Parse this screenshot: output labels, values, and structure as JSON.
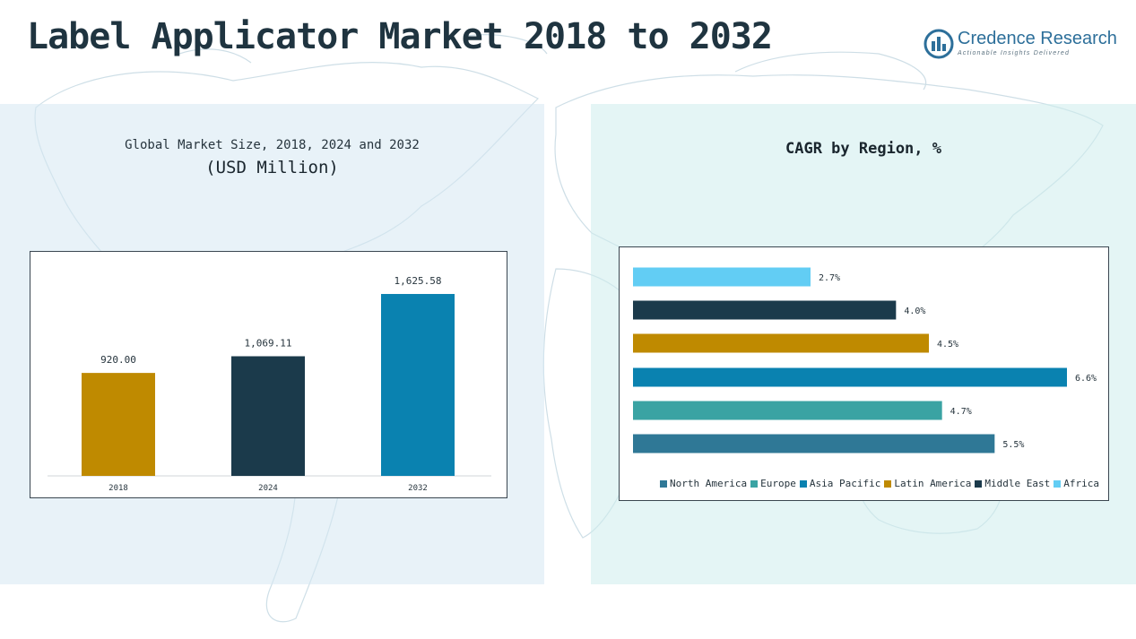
{
  "header": {
    "title": "Label Applicator Market 2018 to 2032",
    "brand_name": "Credence Research",
    "brand_tagline": "Actionable Insights Delivered"
  },
  "left_panel": {
    "title_line1": "Global Market Size, 2018, 2024 and 2032",
    "title_line2": "(USD Million)"
  },
  "right_panel": {
    "title": "CAGR by Region, %"
  },
  "colors": {
    "north_america": "#2f7896",
    "europe": "#3aa3a3",
    "asia_pacific": "#0a82b0",
    "latin_america": "#bf8a00",
    "middle_east": "#1b3a4b",
    "africa": "#62cdf4",
    "bar_2018": "#bf8a00",
    "bar_2024": "#1b3a4b",
    "bar_2032": "#0a82b0"
  },
  "chart_data": [
    {
      "type": "bar",
      "title": "Global Market Size, 2018, 2024 and 2032 (USD Million)",
      "categories": [
        "2018",
        "2024",
        "2032"
      ],
      "values": [
        920.0,
        1069.11,
        1625.58
      ],
      "value_labels": [
        "920.00",
        "1,069.11",
        "1,625.58"
      ],
      "colors": [
        "#bf8a00",
        "#1b3a4b",
        "#0a82b0"
      ],
      "ylim": [
        0,
        1850
      ],
      "grid": false
    },
    {
      "type": "bar",
      "orientation": "horizontal",
      "title": "CAGR by Region, %",
      "categories": [
        "North America",
        "Europe",
        "Asia Pacific",
        "Latin America",
        "Middle East",
        "Africa"
      ],
      "values": [
        5.5,
        4.7,
        6.6,
        4.5,
        4.0,
        2.7
      ],
      "value_labels": [
        "5.5%",
        "4.7%",
        "6.6%",
        "4.5%",
        "4.0%",
        "2.7%"
      ],
      "colors": [
        "#2f7896",
        "#3aa3a3",
        "#0a82b0",
        "#bf8a00",
        "#1b3a4b",
        "#62cdf4"
      ],
      "xlim": [
        0,
        6.6
      ],
      "legend_position": "bottom",
      "grid": false
    }
  ]
}
